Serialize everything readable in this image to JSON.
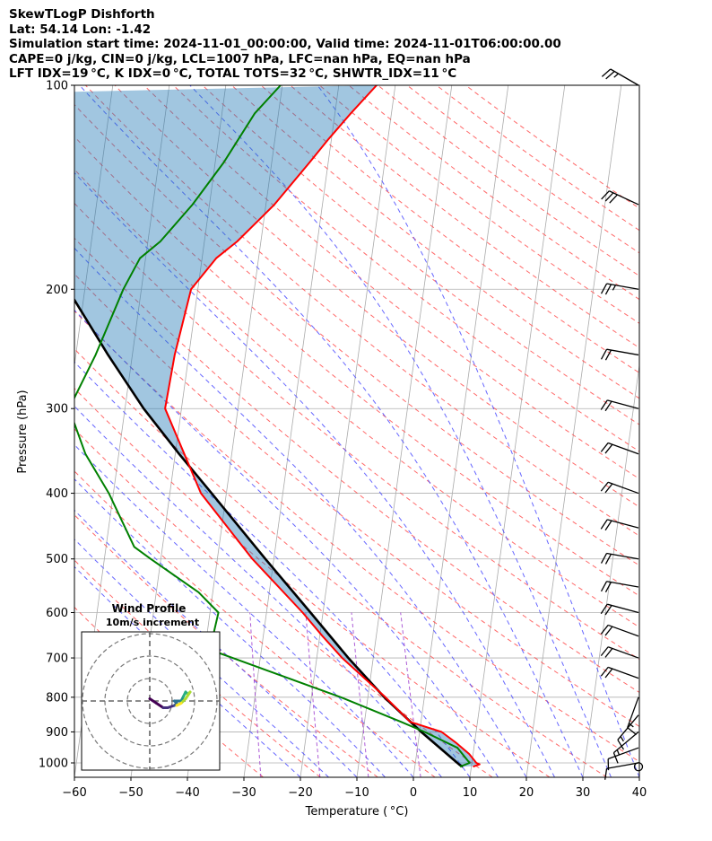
{
  "header": {
    "line1": "SkewTLogP Dishforth",
    "line2": "Lat: 54.14   Lon: -1.42",
    "line3": "Simulation start time: 2024-11-01_00:00:00, Valid time: 2024-11-01T06:00:00.00",
    "line4": "CAPE=0 j/kg, CIN=0 j/kg, LCL=1007 hPa, LFC=nan hPa, EQ=nan hPa",
    "line5": "LFT IDX=19 °C, K IDX=0 °C, TOTAL TOTS=32 °C, SHWTR_IDX=11 °C"
  },
  "chart_data": {
    "type": "line",
    "title": "SkewTLogP Dishforth",
    "xlabel": "Temperature ( °C)",
    "ylabel": "Pressure (hPa)",
    "xlim": [
      -60,
      40
    ],
    "ylim": [
      1050,
      100
    ],
    "xticks": [
      "−60",
      "−50",
      "−40",
      "−30",
      "−20",
      "−10",
      "0",
      "10",
      "20",
      "30",
      "40"
    ],
    "yticks": [
      "100",
      "200",
      "300",
      "400",
      "500",
      "600",
      "700",
      "800",
      "900",
      "1000"
    ],
    "series": [
      {
        "name": "temperature",
        "color": "#ff0000",
        "points": [
          [
            100,
            -23.3
          ],
          [
            110,
            -27.2
          ],
          [
            120,
            -30.5
          ],
          [
            130,
            -33.3
          ],
          [
            150,
            -38.5
          ],
          [
            170,
            -44.2
          ],
          [
            180,
            -47.5
          ],
          [
            200,
            -51.2
          ],
          [
            250,
            -52.5
          ],
          [
            300,
            -52.9
          ],
          [
            400,
            -44.5
          ],
          [
            500,
            -33.8
          ],
          [
            600,
            -23.6
          ],
          [
            650,
            -19.5
          ],
          [
            700,
            -15.5
          ],
          [
            800,
            -6.9
          ],
          [
            870,
            -1.9
          ],
          [
            900,
            3.9
          ],
          [
            935,
            6.8
          ],
          [
            970,
            9.3
          ],
          [
            1000,
            10.8
          ],
          [
            1005,
            11.4
          ],
          [
            1013,
            10.3
          ]
        ]
      },
      {
        "name": "dewpoint",
        "color": "#008000",
        "points": [
          [
            100,
            -40.3
          ],
          [
            110,
            -44.2
          ],
          [
            130,
            -48.5
          ],
          [
            150,
            -53.0
          ],
          [
            170,
            -57.8
          ],
          [
            180,
            -61.0
          ],
          [
            200,
            -63.2
          ],
          [
            250,
            -66.5
          ],
          [
            300,
            -69.9
          ],
          [
            350,
            -65.9
          ],
          [
            400,
            -60.8
          ],
          [
            480,
            -55.0
          ],
          [
            500,
            -51.8
          ],
          [
            560,
            -42.5
          ],
          [
            600,
            -38.5
          ],
          [
            650,
            -38.9
          ],
          [
            680,
            -39.3
          ],
          [
            750,
            -24.5
          ],
          [
            800,
            -14.8
          ],
          [
            870,
            -3.5
          ],
          [
            900,
            0.9
          ],
          [
            950,
            7.1
          ],
          [
            1000,
            9.6
          ],
          [
            1013,
            8.0
          ]
        ]
      },
      {
        "name": "parcel",
        "color": "#000000",
        "points": [
          [
            100,
            -96.2
          ],
          [
            150,
            -82.7
          ],
          [
            200,
            -73.0
          ],
          [
            250,
            -64.3
          ],
          [
            300,
            -56.7
          ],
          [
            350,
            -49.3
          ],
          [
            400,
            -42.6
          ],
          [
            500,
            -31.5
          ],
          [
            600,
            -22.2
          ],
          [
            700,
            -14.4
          ],
          [
            800,
            -7.1
          ],
          [
            900,
            0.3
          ],
          [
            1007,
            7.9
          ],
          [
            1013,
            8.5
          ]
        ]
      }
    ],
    "wind_barbs": [
      {
        "p": 100,
        "dir": 300,
        "speed": 25
      },
      {
        "p": 150,
        "dir": 295,
        "speed": 30
      },
      {
        "p": 200,
        "dir": 280,
        "speed": 25
      },
      {
        "p": 250,
        "dir": 280,
        "speed": 20
      },
      {
        "p": 300,
        "dir": 285,
        "speed": 20
      },
      {
        "p": 350,
        "dir": 290,
        "speed": 20
      },
      {
        "p": 400,
        "dir": 290,
        "speed": 20
      },
      {
        "p": 450,
        "dir": 285,
        "speed": 20
      },
      {
        "p": 500,
        "dir": 280,
        "speed": 20
      },
      {
        "p": 550,
        "dir": 280,
        "speed": 20
      },
      {
        "p": 600,
        "dir": 285,
        "speed": 20
      },
      {
        "p": 650,
        "dir": 290,
        "speed": 20
      },
      {
        "p": 700,
        "dir": 290,
        "speed": 20
      },
      {
        "p": 750,
        "dir": 290,
        "speed": 20
      },
      {
        "p": 800,
        "dir": 200,
        "speed": 15
      },
      {
        "p": 850,
        "dir": 220,
        "speed": 15
      },
      {
        "p": 900,
        "dir": 230,
        "speed": 15
      },
      {
        "p": 950,
        "dir": 250,
        "speed": 10
      },
      {
        "p": 1000,
        "dir": 260,
        "speed": 10
      }
    ],
    "hodograph": {
      "title": "Wind Profile",
      "subtitle": "10m/s increment",
      "rings": [
        10,
        20,
        30
      ],
      "points": [
        [
          0,
          1
        ],
        [
          3,
          -1
        ],
        [
          6,
          -3
        ],
        [
          8,
          -3
        ],
        [
          11,
          -2
        ],
        [
          12,
          -1
        ],
        [
          11,
          0
        ],
        [
          14,
          0
        ],
        [
          15,
          2
        ],
        [
          16,
          4
        ],
        [
          17,
          3
        ],
        [
          18,
          4
        ],
        [
          16,
          1
        ],
        [
          14,
          -1
        ],
        [
          12,
          -2
        ]
      ]
    }
  }
}
